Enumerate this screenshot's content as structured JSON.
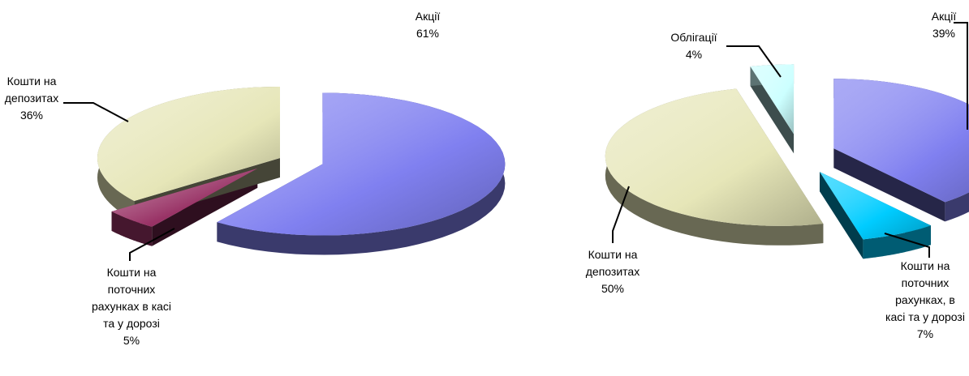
{
  "chart_data": [
    {
      "type": "pie",
      "categories": [
        "Акції",
        "Кошти на поточних рахунках в касі та у дорозі",
        "Кошти на депозитах"
      ],
      "values": [
        61,
        5,
        36
      ],
      "value_labels": [
        "61%",
        "5%",
        "36%"
      ],
      "colors": [
        "#8080f0",
        "#993366",
        "#e6e6b8"
      ]
    },
    {
      "type": "pie",
      "categories": [
        "Акції",
        "Кошти на поточних рахунках, в касі та у дорозі",
        "Кошти на депозитах",
        "Облігації"
      ],
      "values": [
        39,
        7,
        50,
        4
      ],
      "value_labels": [
        "39%",
        "7%",
        "50%",
        "4%"
      ],
      "colors": [
        "#8080f0",
        "#00ccff",
        "#e6e6b8",
        "#ccffff"
      ]
    }
  ]
}
